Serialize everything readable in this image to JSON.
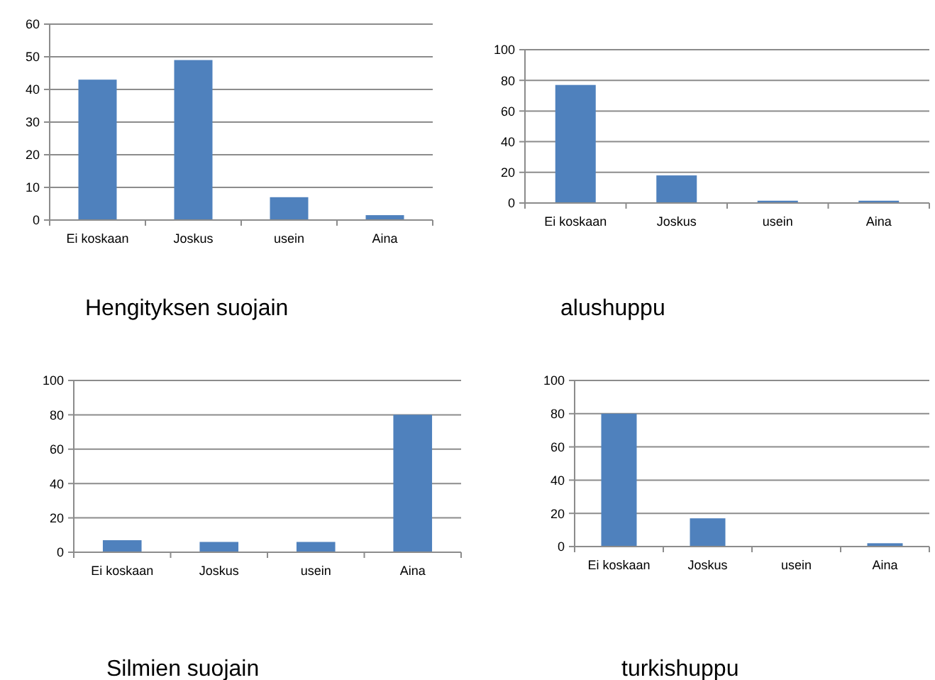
{
  "chart_data": [
    {
      "type": "bar",
      "title": "Hengityksen suojain",
      "categories": [
        "Ei koskaan",
        "Joskus",
        "usein",
        "Aina"
      ],
      "values": [
        43,
        49,
        7,
        1.5
      ],
      "color": "#4f81bd",
      "ylim": [
        0,
        60
      ],
      "yticks": [
        0,
        10,
        20,
        30,
        40,
        50,
        60
      ],
      "grid": "y"
    },
    {
      "type": "bar",
      "title": "alushuppu",
      "categories": [
        "Ei koskaan",
        "Joskus",
        "usein",
        "Aina"
      ],
      "values": [
        77,
        18,
        1.5,
        1.5
      ],
      "color": "#4f81bd",
      "ylim": [
        0,
        100
      ],
      "yticks": [
        0,
        20,
        40,
        60,
        80,
        100
      ],
      "grid": "y"
    },
    {
      "type": "bar",
      "title": "Silmien suojain",
      "categories": [
        "Ei koskaan",
        "Joskus",
        "usein",
        "Aina"
      ],
      "values": [
        7,
        6,
        6,
        80
      ],
      "color": "#4f81bd",
      "ylim": [
        0,
        100
      ],
      "yticks": [
        0,
        20,
        40,
        60,
        80,
        100
      ],
      "grid": "y"
    },
    {
      "type": "bar",
      "title": "turkishuppu",
      "categories": [
        "Ei koskaan",
        "Joskus",
        "usein",
        "Aina"
      ],
      "values": [
        80,
        17,
        0,
        2
      ],
      "color": "#4f81bd",
      "ylim": [
        0,
        100
      ],
      "yticks": [
        0,
        20,
        40,
        60,
        80,
        100
      ],
      "grid": "y"
    }
  ]
}
